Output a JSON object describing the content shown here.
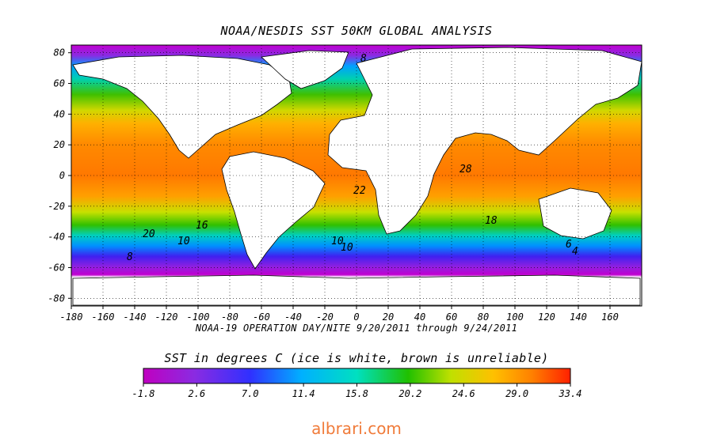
{
  "title": "NOAA/NESDIS SST 50KM GLOBAL ANALYSIS",
  "subtitle": "NOAA-19 OPERATION DAY/NITE  9/20/2011 through 9/24/2011",
  "lat_ticks": [
    "80",
    "60",
    "40",
    "20",
    "0",
    "-20",
    "-40",
    "-60",
    "-80"
  ],
  "lon_ticks": [
    "-180",
    "-160",
    "-140",
    "-120",
    "-100",
    "-80",
    "-60",
    "-40",
    "-20",
    "0",
    "20",
    "40",
    "60",
    "80",
    "100",
    "120",
    "140",
    "160"
  ],
  "contour_labels": [
    "8",
    "22",
    "18",
    "16",
    "10",
    "10",
    "10",
    "6",
    "8",
    "4",
    "20",
    "28"
  ],
  "legend": {
    "title": "SST in degrees C (ice is white, brown is unreliable)",
    "ticks": [
      "-1.8",
      "2.6",
      "7.0",
      "11.4",
      "15.8",
      "20.2",
      "24.6",
      "29.0",
      "33.4"
    ],
    "colors": [
      "#c000c0",
      "#8a2be2",
      "#3030ff",
      "#00b0ff",
      "#00e0c0",
      "#20c000",
      "#c0e000",
      "#ffc000",
      "#ff8000",
      "#ff2000"
    ]
  },
  "watermark": "albrari.com"
}
